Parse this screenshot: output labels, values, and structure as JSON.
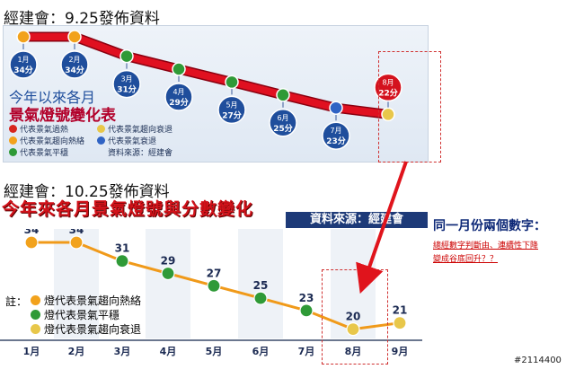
{
  "caption_top": "經建會：9.25發佈資料",
  "caption_bottom": "經建會：10.25發佈資料",
  "panel1": {
    "subtitle": "今年以來各月",
    "title": "景氣燈號變化表",
    "legend": [
      {
        "label": "代表景氣過熱",
        "color": "#d7261e"
      },
      {
        "label": "代表景氣趨向熱絡",
        "color": "#f2a21c"
      },
      {
        "label": "代表景氣平穩",
        "color": "#2f9a37"
      },
      {
        "label": "代表景氣趨向衰退",
        "color": "#e8c74a"
      },
      {
        "label": "代表景氣衰退",
        "color": "#2f63c4"
      }
    ],
    "source": "資料來源：經建會",
    "points": [
      {
        "m": "1月",
        "v": "34分"
      },
      {
        "m": "2月",
        "v": "34分"
      },
      {
        "m": "3月",
        "v": "31分"
      },
      {
        "m": "4月",
        "v": "29分"
      },
      {
        "m": "5月",
        "v": "27分"
      },
      {
        "m": "6月",
        "v": "25分"
      },
      {
        "m": "7月",
        "v": "23分"
      },
      {
        "m": "8月",
        "v": "22分"
      }
    ]
  },
  "chart2": {
    "title": "今年來各月景氣燈號與分數變化",
    "source": "資料來源：經建會",
    "note_label": "註：",
    "notes": [
      "燈代表景氣趨向熱絡",
      "燈代表景氣平穩",
      "燈代表景氣趨向衰退"
    ]
  },
  "chart_data": [
    {
      "type": "line",
      "title": "今年以來各月景氣燈號變化表",
      "categories": [
        "1月",
        "2月",
        "3月",
        "4月",
        "5月",
        "6月",
        "7月",
        "8月"
      ],
      "values": [
        34,
        34,
        31,
        29,
        27,
        25,
        23,
        22
      ],
      "colors": [
        "#f2a21c",
        "#f2a21c",
        "#2f9a37",
        "#2f9a37",
        "#2f9a37",
        "#2f9a37",
        "#2f63c4",
        "#e8c74a"
      ]
    },
    {
      "type": "line",
      "title": "今年來各月景氣燈號與分數變化",
      "categories": [
        "1月",
        "2月",
        "3月",
        "4月",
        "5月",
        "6月",
        "7月",
        "8月",
        "9月"
      ],
      "values": [
        34,
        34,
        31,
        29,
        27,
        25,
        23,
        20,
        21
      ],
      "colors": [
        "#f2a21c",
        "#f2a21c",
        "#2f9a37",
        "#2f9a37",
        "#2f9a37",
        "#2f9a37",
        "#2f9a37",
        "#e8c74a",
        "#e8c74a"
      ]
    }
  ],
  "side": {
    "title": "同一月份兩個數字：",
    "note_line1": "總經數字判斷由、連續性下降",
    "note_line2": "變成谷底回升？？"
  },
  "watermark": "#2114400"
}
